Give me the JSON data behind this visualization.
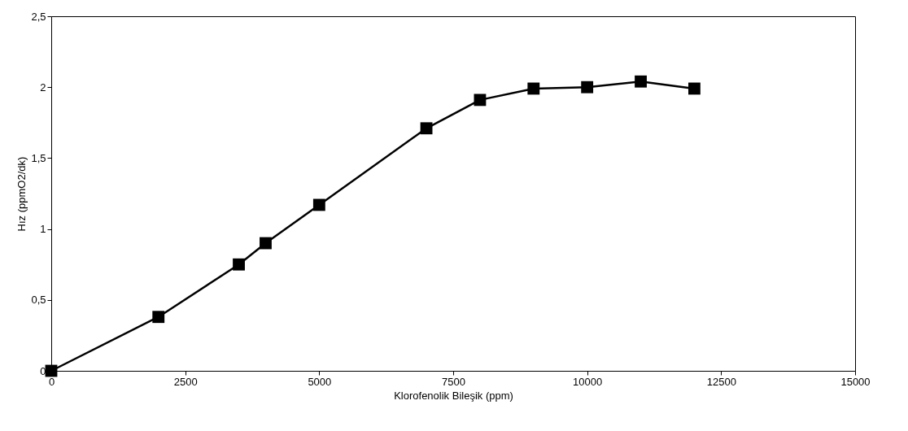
{
  "chart_data": {
    "type": "line",
    "xlabel": "Klorofenolik Bileşik (ppm)",
    "ylabel": "Hız (ppmO2/dk)",
    "x": [
      0,
      2000,
      3500,
      4000,
      5000,
      7000,
      8000,
      9000,
      10000,
      11000,
      12000
    ],
    "values": [
      0,
      0.38,
      0.75,
      0.9,
      1.17,
      1.71,
      1.91,
      1.99,
      2.0,
      2.04,
      1.99
    ],
    "color": "#000000",
    "marker": "square",
    "line_style": "solid",
    "xlim": [
      0,
      15000
    ],
    "xticks": [
      0,
      2500,
      5000,
      7500,
      10000,
      12500,
      15000
    ],
    "ylim": [
      0,
      2.5
    ],
    "yticks": [
      0,
      {
        "value": 0.5,
        "label": "0,5"
      },
      1,
      {
        "value": 1.5,
        "label": "1,5"
      },
      2,
      {
        "value": 2.5,
        "label": "2,5"
      }
    ]
  }
}
